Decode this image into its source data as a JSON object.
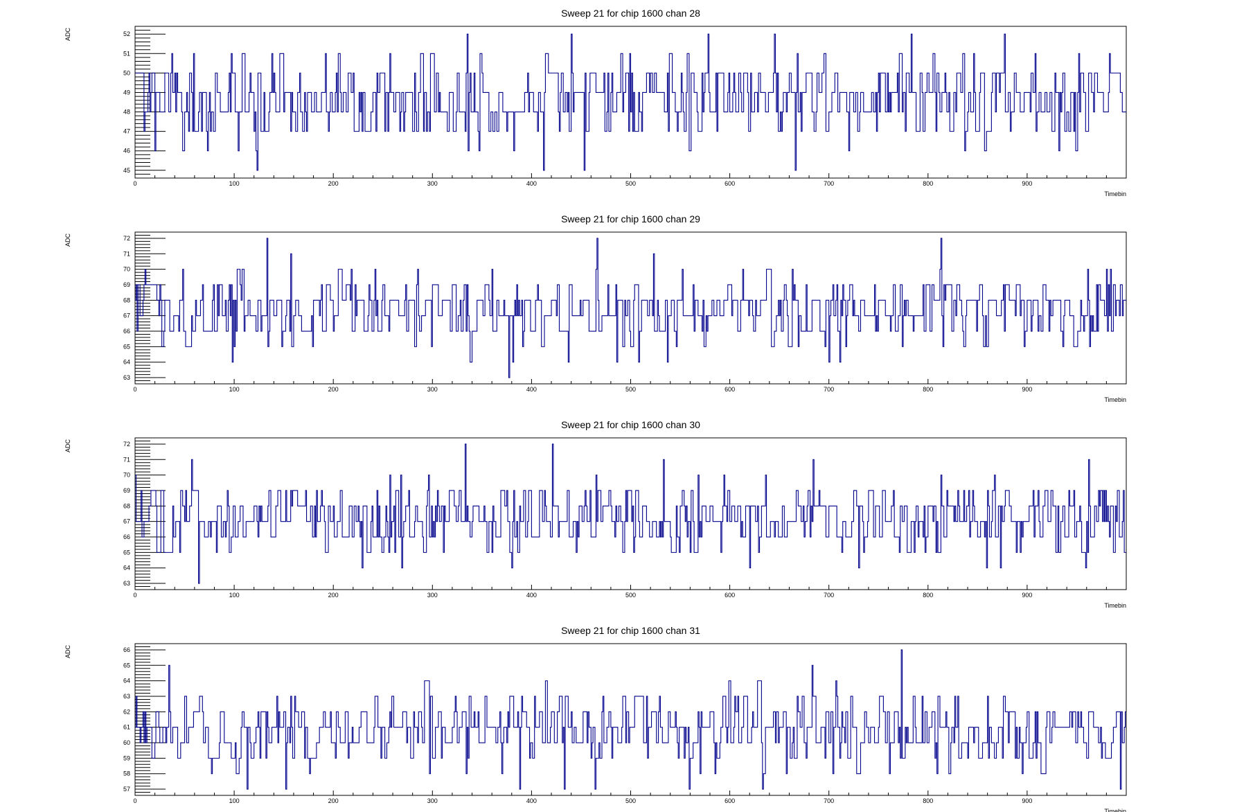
{
  "chart_data": [
    {
      "type": "line",
      "title": "Sweep 21 for chip 1600 chan 28",
      "xlabel": "Timebin",
      "ylabel": "ADC",
      "xlim": [
        0,
        1000
      ],
      "ylim": [
        44.6,
        52.4
      ],
      "x_ticks": [
        "0",
        "100",
        "200",
        "300",
        "400",
        "500",
        "600",
        "700",
        "800",
        "900"
      ],
      "y_ticks": [
        "45",
        "46",
        "47",
        "48",
        "49",
        "50",
        "51",
        "52"
      ],
      "grid": false,
      "series": [
        {
          "color": "#00008b",
          "mean": 48.6,
          "sd": 1.1,
          "min": 45,
          "max": 52,
          "spikes": [
            [
              123,
              45
            ],
            [
              335,
              52
            ],
            [
              412,
              45
            ],
            [
              440,
              52
            ],
            [
              453,
              45
            ],
            [
              578,
              52
            ],
            [
              645,
              52
            ],
            [
              666,
              45
            ],
            [
              783,
              52
            ],
            [
              877,
              52
            ]
          ]
        }
      ]
    },
    {
      "type": "line",
      "title": "Sweep 21 for chip 1600 chan 29",
      "xlabel": "Timebin",
      "ylabel": "ADC",
      "xlim": [
        0,
        1000
      ],
      "ylim": [
        62.6,
        72.4
      ],
      "x_ticks": [
        "0",
        "100",
        "200",
        "300",
        "400",
        "500",
        "600",
        "700",
        "800",
        "900"
      ],
      "y_ticks": [
        "63",
        "64",
        "65",
        "66",
        "67",
        "68",
        "69",
        "70",
        "71",
        "72"
      ],
      "grid": false,
      "series": [
        {
          "color": "#00008b",
          "mean": 67.4,
          "sd": 1.2,
          "min": 63,
          "max": 72,
          "spikes": [
            [
              133,
              72
            ],
            [
              377,
              63
            ],
            [
              466,
              72
            ],
            [
              813,
              72
            ],
            [
              98,
              64
            ],
            [
              381,
              64
            ],
            [
              437,
              64
            ],
            [
              537,
              64
            ],
            [
              700,
              64
            ]
          ]
        }
      ]
    },
    {
      "type": "line",
      "title": "Sweep 21 for chip 1600 chan 30",
      "xlabel": "Timebin",
      "ylabel": "ADC",
      "xlim": [
        0,
        1000
      ],
      "ylim": [
        62.6,
        72.4
      ],
      "x_ticks": [
        "0",
        "100",
        "200",
        "300",
        "400",
        "500",
        "600",
        "700",
        "800",
        "900"
      ],
      "y_ticks": [
        "63",
        "64",
        "65",
        "66",
        "67",
        "68",
        "69",
        "70",
        "71",
        "72"
      ],
      "grid": false,
      "series": [
        {
          "color": "#00008b",
          "mean": 67.2,
          "sd": 1.2,
          "min": 63,
          "max": 72,
          "spikes": [
            [
              64,
              63
            ],
            [
              333,
              72
            ],
            [
              421,
              72
            ],
            [
              269,
              64
            ],
            [
              380,
              64
            ],
            [
              620,
              64
            ],
            [
              730,
              64
            ],
            [
              57,
              71
            ],
            [
              533,
              71
            ],
            [
              962,
              71
            ]
          ]
        }
      ]
    },
    {
      "type": "line",
      "title": "Sweep 21 for chip 1600 chan 31",
      "xlabel": "Timebin",
      "ylabel": "ADC",
      "xlim": [
        0,
        1000
      ],
      "ylim": [
        56.6,
        66.4
      ],
      "x_ticks": [
        "0",
        "100",
        "200",
        "300",
        "400",
        "500",
        "600",
        "700",
        "800",
        "900"
      ],
      "y_ticks": [
        "57",
        "58",
        "59",
        "60",
        "61",
        "62",
        "63",
        "64",
        "65",
        "66"
      ],
      "grid": false,
      "series": [
        {
          "color": "#00008b",
          "mean": 60.8,
          "sd": 1.2,
          "min": 57,
          "max": 66,
          "spikes": [
            [
              773,
              66
            ],
            [
              113,
              57
            ],
            [
              152,
              57
            ],
            [
              388,
              57
            ],
            [
              433,
              57
            ],
            [
              464,
              57
            ],
            [
              559,
              57
            ],
            [
              633,
              57
            ],
            [
              994,
              57
            ],
            [
              683,
              65
            ],
            [
              34,
              65
            ]
          ]
        }
      ]
    }
  ]
}
